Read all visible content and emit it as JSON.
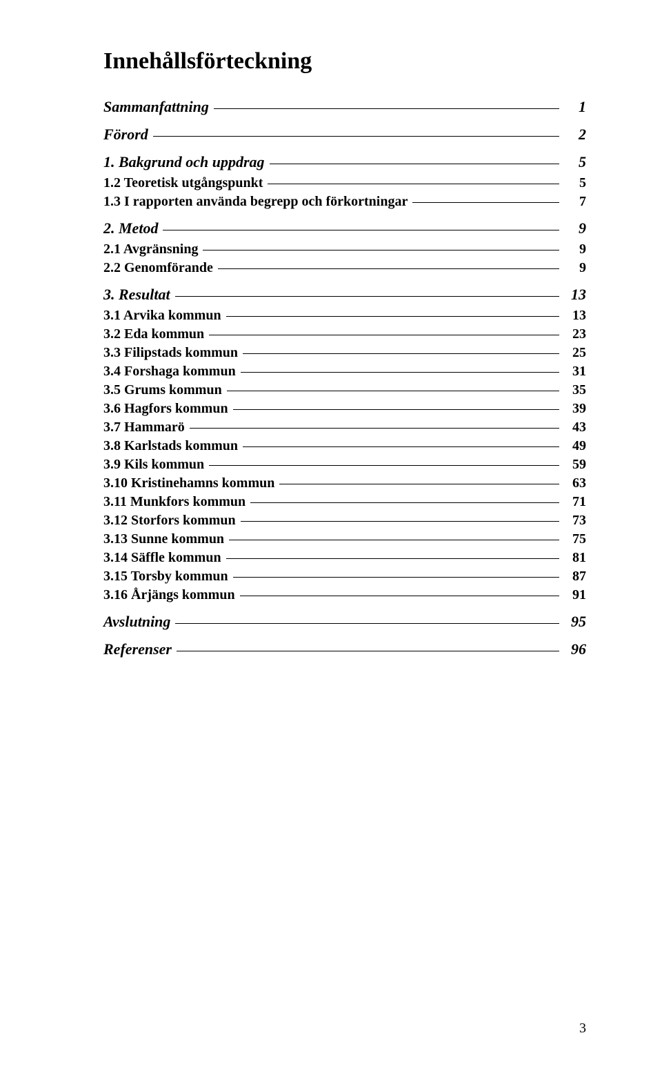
{
  "title": "Innehållsförteckning",
  "entries": [
    {
      "level": 1,
      "label": "Sammanfattning",
      "page": "1"
    },
    {
      "level": 1,
      "label": "Förord",
      "page": "2"
    },
    {
      "level": 1,
      "label": "1. Bakgrund och uppdrag",
      "page": "5"
    },
    {
      "level": 2,
      "label": "1.2 Teoretisk utgångspunkt",
      "page": "5"
    },
    {
      "level": 2,
      "label": "1.3 I rapporten använda begrepp och förkortningar",
      "page": "7"
    },
    {
      "level": 1,
      "label": "2. Metod",
      "page": "9"
    },
    {
      "level": 2,
      "label": "2.1 Avgränsning",
      "page": "9"
    },
    {
      "level": 2,
      "label": "2.2 Genomförande",
      "page": "9"
    },
    {
      "level": 1,
      "label": "3. Resultat",
      "page": "13"
    },
    {
      "level": 2,
      "label": "3.1 Arvika kommun",
      "page": "13"
    },
    {
      "level": 2,
      "label": "3.2 Eda kommun",
      "page": "23"
    },
    {
      "level": 2,
      "label": "3.3 Filipstads kommun",
      "page": "25"
    },
    {
      "level": 2,
      "label": "3.4 Forshaga kommun",
      "page": "31"
    },
    {
      "level": 2,
      "label": "3.5 Grums kommun",
      "page": "35"
    },
    {
      "level": 2,
      "label": "3.6 Hagfors kommun",
      "page": "39"
    },
    {
      "level": 2,
      "label": "3.7 Hammarö",
      "page": "43"
    },
    {
      "level": 2,
      "label": "3.8 Karlstads kommun",
      "page": "49"
    },
    {
      "level": 2,
      "label": "3.9 Kils kommun",
      "page": "59"
    },
    {
      "level": 2,
      "label": "3.10 Kristinehamns kommun",
      "page": "63"
    },
    {
      "level": 2,
      "label": "3.11 Munkfors kommun",
      "page": "71"
    },
    {
      "level": 2,
      "label": "3.12 Storfors kommun",
      "page": "73"
    },
    {
      "level": 2,
      "label": "3.13 Sunne kommun",
      "page": "75"
    },
    {
      "level": 2,
      "label": "3.14 Säffle kommun",
      "page": "81"
    },
    {
      "level": 2,
      "label": "3.15 Torsby kommun",
      "page": "87"
    },
    {
      "level": 2,
      "label": "3.16 Årjängs kommun",
      "page": "91"
    },
    {
      "level": 1,
      "label": "Avslutning",
      "page": "95"
    },
    {
      "level": 1,
      "label": "Referenser",
      "page": "96"
    }
  ],
  "footer_page_number": "3"
}
